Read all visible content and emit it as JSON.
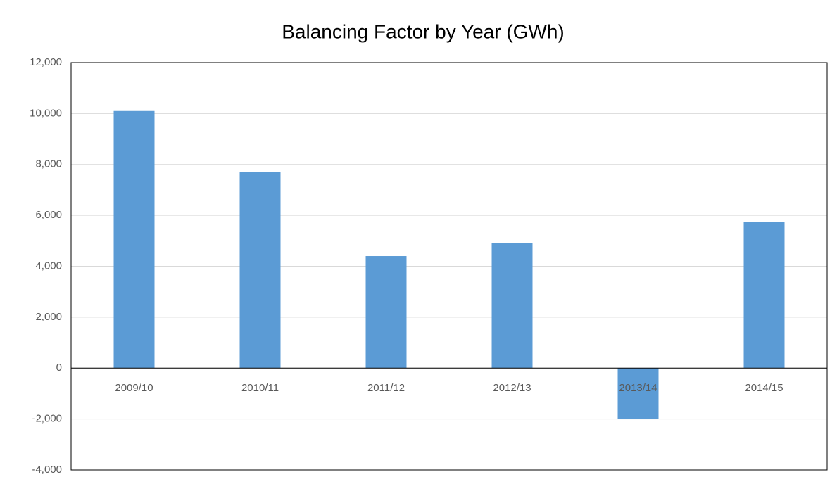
{
  "chart_data": {
    "type": "bar",
    "title": "Balancing Factor by Year (GWh)",
    "categories": [
      "2009/10",
      "2010/11",
      "2011/12",
      "2012/13",
      "2013/14",
      "2014/15"
    ],
    "values": [
      10100,
      7700,
      4400,
      4900,
      -2000,
      5750
    ],
    "color": "#5b9bd5",
    "ylim": [
      -4000,
      12000
    ],
    "yticks": [
      {
        "value": -4000,
        "label": "-4,000"
      },
      {
        "value": -2000,
        "label": "-2,000"
      },
      0,
      {
        "value": 2000,
        "label": "2,000"
      },
      {
        "value": 4000,
        "label": "4,000"
      },
      {
        "value": 6000,
        "label": "6,000"
      },
      {
        "value": 8000,
        "label": "8,000"
      },
      {
        "value": 10000,
        "label": "10,000"
      },
      {
        "value": 12000,
        "label": "12,000"
      }
    ],
    "grid": true
  }
}
